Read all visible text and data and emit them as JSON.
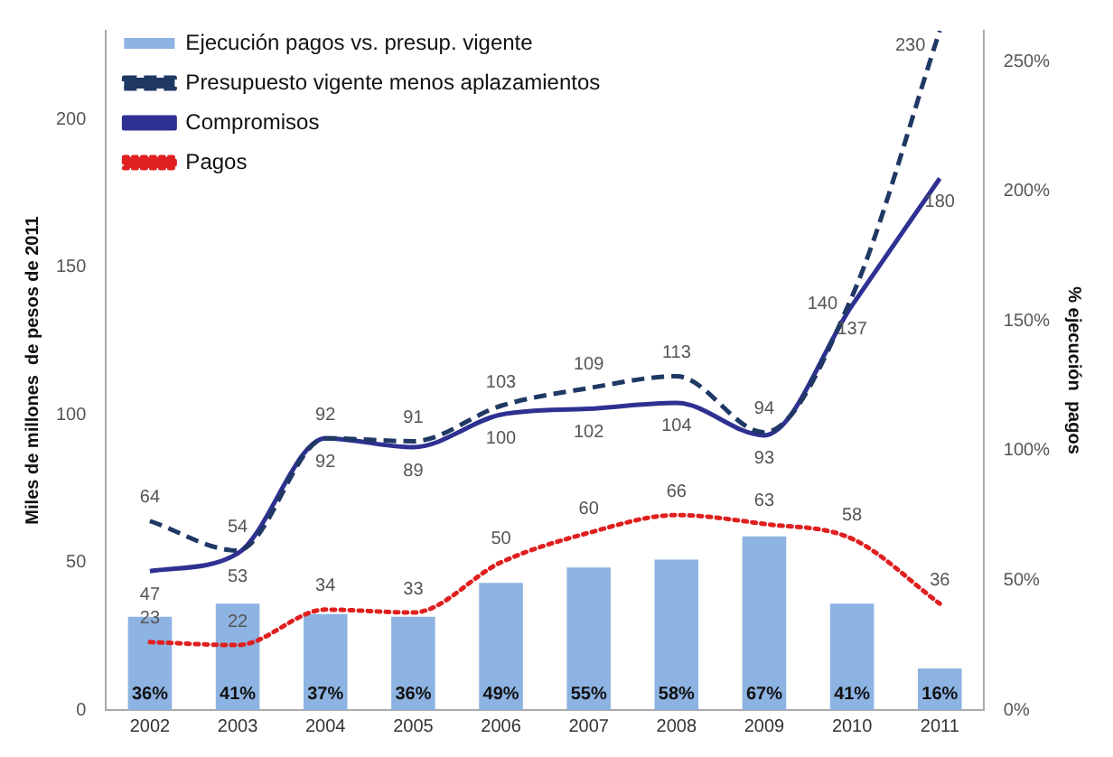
{
  "chart_data": {
    "type": "bar",
    "categories": [
      "2002",
      "2003",
      "2004",
      "2005",
      "2006",
      "2007",
      "2008",
      "2009",
      "2010",
      "2011"
    ],
    "ylabel": "Miles de millones  de pesos de 2011",
    "y2label": "% ejecución  pagos",
    "ylim": [
      0,
      230
    ],
    "yticks": [
      0,
      50,
      100,
      150,
      200
    ],
    "y2lim": [
      0,
      262
    ],
    "y2ticks": [
      {
        "value": 0,
        "label": "0%"
      },
      {
        "value": 50,
        "label": "50%"
      },
      {
        "value": 100,
        "label": "100%"
      },
      {
        "value": 150,
        "label": "150%"
      },
      {
        "value": 200,
        "label": "200%"
      },
      {
        "value": 250,
        "label": "250%"
      }
    ],
    "grid": false,
    "legend": "top left",
    "data_labels": true,
    "series": [
      {
        "name": "Ejecución pagos vs. presup. vigente",
        "axis": "y2",
        "color": "#8db3e2",
        "values": [
          36,
          41,
          37,
          36,
          49,
          55,
          58,
          67,
          41,
          16
        ],
        "value_labels": [
          "36%",
          "41%",
          "37%",
          "36%",
          "49%",
          "55%",
          "58%",
          "67%",
          "41%",
          "16%"
        ]
      },
      {
        "name": "Presupuesto vigente menos aplazamientos",
        "type": "line",
        "line_style": "dashed",
        "color": "#1f3864",
        "values": [
          64,
          54,
          92,
          91,
          103,
          109,
          113,
          94,
          140,
          230
        ]
      },
      {
        "name": "Compromisos",
        "type": "line",
        "line_style": "solid",
        "color": "#2e3192",
        "values": [
          47,
          53,
          92,
          89,
          100,
          102,
          104,
          93,
          137,
          180
        ]
      },
      {
        "name": "Pagos",
        "type": "line",
        "line_style": "dotted",
        "color": "#e02020",
        "values": [
          23,
          22,
          34,
          33,
          50,
          60,
          66,
          63,
          58,
          36
        ]
      }
    ]
  }
}
